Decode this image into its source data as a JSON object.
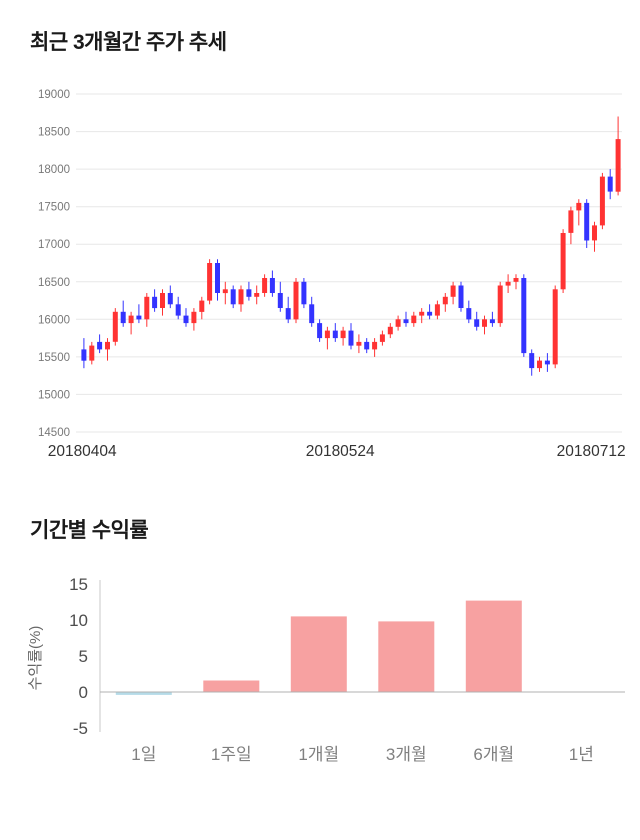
{
  "chart_data": [
    {
      "type": "candlestick",
      "title": "최근 3개월간 주가 추세",
      "ylim": [
        14500,
        19000
      ],
      "y_ticks": [
        19000,
        18500,
        18000,
        17500,
        17000,
        16500,
        16000,
        15500,
        15000,
        14500
      ],
      "x_ticks": [
        {
          "label": "20180404",
          "pos": 0.004
        },
        {
          "label": "20180524",
          "pos": 0.48
        },
        {
          "label": "20180712",
          "pos": 0.943
        }
      ],
      "grid": true,
      "legend": "none",
      "up_color": "#ff3333",
      "down_color": "#3333ff",
      "candles_ohlc": [
        [
          15600,
          15750,
          15350,
          15450
        ],
        [
          15450,
          15700,
          15400,
          15650
        ],
        [
          15700,
          15800,
          15550,
          15600
        ],
        [
          15600,
          15750,
          15450,
          15700
        ],
        [
          15700,
          16150,
          15650,
          16100
        ],
        [
          16100,
          16250,
          15900,
          15950
        ],
        [
          15950,
          16100,
          15800,
          16050
        ],
        [
          16050,
          16200,
          15950,
          16000
        ],
        [
          16000,
          16350,
          15900,
          16300
        ],
        [
          16300,
          16400,
          16100,
          16150
        ],
        [
          16150,
          16400,
          16050,
          16350
        ],
        [
          16350,
          16450,
          16150,
          16200
        ],
        [
          16200,
          16300,
          16000,
          16050
        ],
        [
          16050,
          16150,
          15900,
          15950
        ],
        [
          15950,
          16150,
          15850,
          16100
        ],
        [
          16100,
          16300,
          16000,
          16250
        ],
        [
          16250,
          16800,
          16200,
          16750
        ],
        [
          16750,
          16800,
          16250,
          16350
        ],
        [
          16350,
          16500,
          16200,
          16400
        ],
        [
          16400,
          16450,
          16150,
          16200
        ],
        [
          16200,
          16450,
          16100,
          16400
        ],
        [
          16400,
          16500,
          16250,
          16300
        ],
        [
          16300,
          16450,
          16200,
          16350
        ],
        [
          16350,
          16600,
          16300,
          16550
        ],
        [
          16550,
          16650,
          16300,
          16350
        ],
        [
          16350,
          16500,
          16100,
          16150
        ],
        [
          16150,
          16300,
          15950,
          16000
        ],
        [
          16000,
          16550,
          15950,
          16500
        ],
        [
          16500,
          16550,
          16150,
          16200
        ],
        [
          16200,
          16300,
          15900,
          15950
        ],
        [
          15950,
          16000,
          15700,
          15750
        ],
        [
          15750,
          15900,
          15600,
          15850
        ],
        [
          15850,
          15950,
          15700,
          15750
        ],
        [
          15750,
          15900,
          15650,
          15850
        ],
        [
          15850,
          15950,
          15600,
          15650
        ],
        [
          15650,
          15800,
          15550,
          15700
        ],
        [
          15700,
          15750,
          15550,
          15600
        ],
        [
          15600,
          15750,
          15500,
          15700
        ],
        [
          15700,
          15850,
          15650,
          15800
        ],
        [
          15800,
          15950,
          15750,
          15900
        ],
        [
          15900,
          16050,
          15850,
          16000
        ],
        [
          16000,
          16100,
          15900,
          15950
        ],
        [
          15950,
          16100,
          15900,
          16050
        ],
        [
          16050,
          16150,
          15950,
          16100
        ],
        [
          16100,
          16200,
          16000,
          16050
        ],
        [
          16050,
          16250,
          16000,
          16200
        ],
        [
          16200,
          16350,
          16100,
          16300
        ],
        [
          16300,
          16500,
          16200,
          16450
        ],
        [
          16450,
          16500,
          16100,
          16150
        ],
        [
          16150,
          16250,
          15950,
          16000
        ],
        [
          16000,
          16100,
          15850,
          15900
        ],
        [
          15900,
          16050,
          15800,
          16000
        ],
        [
          16000,
          16100,
          15900,
          15950
        ],
        [
          15950,
          16500,
          15900,
          16450
        ],
        [
          16450,
          16600,
          16350,
          16500
        ],
        [
          16500,
          16600,
          16400,
          16550
        ],
        [
          16550,
          16600,
          15500,
          15550
        ],
        [
          15550,
          15600,
          15250,
          15350
        ],
        [
          15350,
          15500,
          15300,
          15450
        ],
        [
          15450,
          15550,
          15300,
          15400
        ],
        [
          15400,
          16450,
          15350,
          16400
        ],
        [
          16400,
          17200,
          16350,
          17150
        ],
        [
          17150,
          17500,
          17000,
          17450
        ],
        [
          17450,
          17600,
          17250,
          17550
        ],
        [
          17550,
          17600,
          16950,
          17050
        ],
        [
          17050,
          17300,
          16900,
          17250
        ],
        [
          17250,
          17950,
          17200,
          17900
        ],
        [
          17900,
          18000,
          17600,
          17700
        ],
        [
          17700,
          18700,
          17650,
          18400
        ]
      ]
    },
    {
      "type": "bar",
      "title": "기간별 수익률",
      "ylabel": "수익률(%)",
      "ylim": [
        -5,
        15
      ],
      "y_ticks": [
        15,
        10,
        5,
        0,
        -5
      ],
      "categories": [
        "1일",
        "1주일",
        "1개월",
        "3개월",
        "6개월",
        "1년"
      ],
      "values": [
        -0.4,
        1.6,
        10.5,
        9.8,
        12.7,
        0
      ],
      "bar_colors": [
        "#b5dbe8",
        "#f7a1a1",
        "#f7a1a1",
        "#f7a1a1",
        "#f7a1a1",
        "#f7a1a1"
      ],
      "grid": false,
      "legend": "none",
      "axis_color": "#c9c9c9",
      "baseline_color": "#b0b0b0"
    }
  ]
}
